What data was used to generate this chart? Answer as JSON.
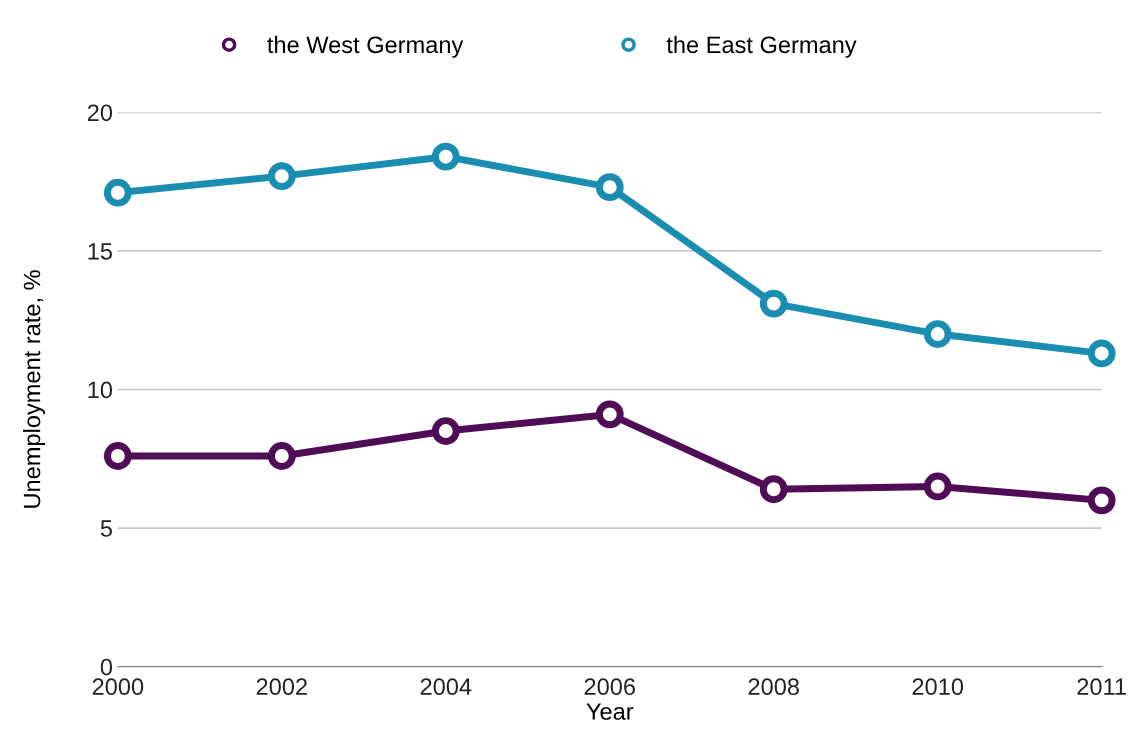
{
  "chart_data": {
    "type": "line",
    "xlabel": "Year",
    "ylabel": "Unemployment rate, %",
    "categories": [
      "2000",
      "2002",
      "2004",
      "2006",
      "2008",
      "2010",
      "2011"
    ],
    "series": [
      {
        "name": "the West Germany",
        "color": "#4e0d55",
        "values": [
          7.6,
          7.6,
          8.5,
          9.1,
          6.4,
          6.5,
          6.0
        ]
      },
      {
        "name": "the East Germany",
        "color": "#1b8db0",
        "values": [
          17.1,
          17.7,
          18.4,
          17.3,
          13.1,
          12.0,
          11.3
        ]
      }
    ],
    "ylim": [
      0,
      20
    ],
    "yticks": [
      0,
      5,
      10,
      15,
      20
    ],
    "grid": "y",
    "legend": "top",
    "marker": "circle",
    "line_style": "solid"
  }
}
